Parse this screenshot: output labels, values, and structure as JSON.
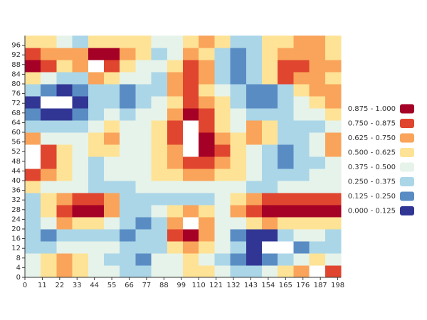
{
  "chart_data": {
    "type": "heatmap",
    "x": [
      0,
      10,
      20,
      30,
      40,
      50,
      60,
      70,
      80,
      90,
      100,
      110,
      120,
      130,
      140,
      150,
      160,
      170,
      180,
      190
    ],
    "y": [
      0,
      5,
      10,
      15,
      20,
      25,
      30,
      35,
      40,
      45,
      50,
      55,
      60,
      65,
      70,
      75,
      80,
      85,
      90,
      95
    ],
    "xlim": [
      0,
      200
    ],
    "ylim": [
      0,
      100
    ],
    "xticks": [
      0,
      11,
      22,
      33,
      44,
      55,
      66,
      77,
      88,
      99,
      110,
      121,
      132,
      143,
      154,
      165,
      176,
      187,
      198
    ],
    "yticks": [
      0,
      4,
      8,
      12,
      16,
      20,
      24,
      28,
      32,
      36,
      40,
      44,
      48,
      52,
      56,
      60,
      64,
      68,
      72,
      76,
      80,
      84,
      88,
      92,
      96
    ],
    "values": [
      [
        0.44,
        0.56,
        0.69,
        0.56,
        0.44,
        0.44,
        0.31,
        0.31,
        0.44,
        0.44,
        0.56,
        0.56,
        0.44,
        0.31,
        0.31,
        0.44,
        0.56,
        0.69,
        1.05,
        0.81
      ],
      [
        0.44,
        0.56,
        0.69,
        0.56,
        0.44,
        0.31,
        0.31,
        0.19,
        0.44,
        0.44,
        0.56,
        0.44,
        0.31,
        0.19,
        0.06,
        0.19,
        0.31,
        0.44,
        0.56,
        0.44
      ],
      [
        0.31,
        0.31,
        0.44,
        0.44,
        0.44,
        0.44,
        0.31,
        0.31,
        0.31,
        0.56,
        0.69,
        0.56,
        0.44,
        0.31,
        0.06,
        1.05,
        1.05,
        0.19,
        0.31,
        0.31
      ],
      [
        0.31,
        0.19,
        0.31,
        0.31,
        0.31,
        0.31,
        0.19,
        0.31,
        0.31,
        0.81,
        0.94,
        0.69,
        0.44,
        0.19,
        0.06,
        0.06,
        0.31,
        0.44,
        0.44,
        0.31
      ],
      [
        0.31,
        0.44,
        0.69,
        0.56,
        0.56,
        0.44,
        0.31,
        0.19,
        0.31,
        0.69,
        1.05,
        0.69,
        0.44,
        0.44,
        0.56,
        0.69,
        0.56,
        0.56,
        0.56,
        0.56
      ],
      [
        0.31,
        0.56,
        0.81,
        0.94,
        0.94,
        0.69,
        0.31,
        0.31,
        0.44,
        0.56,
        0.69,
        0.56,
        0.44,
        0.69,
        0.81,
        0.94,
        0.94,
        0.94,
        0.94,
        0.94
      ],
      [
        0.31,
        0.56,
        0.69,
        0.81,
        0.81,
        0.69,
        0.31,
        0.31,
        0.31,
        0.31,
        0.31,
        0.31,
        0.44,
        0.56,
        0.69,
        0.81,
        0.81,
        0.81,
        0.81,
        0.81
      ],
      [
        0.56,
        0.44,
        0.44,
        0.44,
        0.31,
        0.31,
        0.31,
        0.44,
        0.44,
        0.44,
        0.44,
        0.44,
        0.44,
        0.44,
        0.31,
        0.31,
        0.44,
        0.44,
        0.44,
        0.44
      ],
      [
        0.81,
        0.69,
        0.56,
        0.44,
        0.31,
        0.44,
        0.44,
        0.44,
        0.56,
        0.56,
        0.69,
        0.69,
        0.56,
        0.56,
        0.44,
        0.31,
        0.31,
        0.31,
        0.44,
        0.44
      ],
      [
        1.05,
        0.81,
        0.56,
        0.44,
        0.31,
        0.44,
        0.44,
        0.44,
        0.56,
        0.69,
        0.81,
        0.81,
        0.69,
        0.56,
        0.44,
        0.31,
        0.19,
        0.31,
        0.31,
        0.44
      ],
      [
        1.05,
        0.81,
        0.56,
        0.44,
        0.56,
        0.56,
        0.44,
        0.44,
        0.56,
        0.69,
        1.05,
        0.94,
        0.81,
        0.56,
        0.44,
        0.31,
        0.19,
        0.31,
        0.44,
        0.69
      ],
      [
        0.69,
        0.44,
        0.44,
        0.44,
        0.56,
        0.69,
        0.44,
        0.44,
        0.56,
        0.81,
        1.05,
        0.94,
        0.69,
        0.56,
        0.69,
        0.56,
        0.31,
        0.31,
        0.44,
        0.69
      ],
      [
        0.31,
        0.31,
        0.31,
        0.31,
        0.44,
        0.56,
        0.44,
        0.44,
        0.56,
        0.81,
        1.05,
        0.81,
        0.56,
        0.44,
        0.69,
        0.56,
        0.31,
        0.31,
        0.31,
        0.44
      ],
      [
        0.19,
        0.06,
        0.06,
        0.19,
        0.31,
        0.44,
        0.31,
        0.44,
        0.44,
        0.69,
        0.94,
        0.81,
        0.56,
        0.44,
        0.31,
        0.31,
        0.31,
        0.44,
        0.44,
        0.56
      ],
      [
        0.06,
        1.05,
        1.05,
        0.06,
        0.31,
        0.31,
        0.19,
        0.31,
        0.44,
        0.56,
        0.81,
        0.69,
        0.56,
        0.31,
        0.19,
        0.19,
        0.31,
        0.44,
        0.56,
        0.69
      ],
      [
        0.31,
        0.19,
        0.06,
        0.19,
        0.31,
        0.31,
        0.19,
        0.31,
        0.31,
        0.69,
        0.81,
        0.56,
        0.44,
        0.31,
        0.19,
        0.19,
        0.31,
        0.56,
        0.69,
        0.69
      ],
      [
        0.56,
        0.44,
        0.31,
        0.31,
        0.69,
        0.56,
        0.44,
        0.44,
        0.31,
        0.69,
        0.81,
        0.69,
        0.31,
        0.19,
        0.31,
        0.56,
        0.81,
        0.69,
        0.69,
        0.56
      ],
      [
        0.94,
        0.81,
        0.56,
        0.69,
        1.05,
        0.81,
        0.56,
        0.44,
        0.44,
        0.56,
        0.81,
        0.69,
        0.31,
        0.19,
        0.31,
        0.56,
        0.81,
        0.81,
        0.69,
        0.69
      ],
      [
        0.81,
        0.69,
        0.69,
        0.69,
        0.94,
        0.94,
        0.69,
        0.56,
        0.31,
        0.44,
        0.69,
        0.56,
        0.31,
        0.19,
        0.31,
        0.56,
        0.69,
        0.69,
        0.69,
        0.56
      ],
      [
        0.56,
        0.56,
        0.44,
        0.31,
        0.56,
        0.56,
        0.56,
        0.56,
        0.44,
        0.44,
        0.56,
        0.69,
        0.56,
        0.31,
        0.31,
        0.56,
        0.56,
        0.69,
        0.69,
        0.56
      ]
    ],
    "pieces": [
      {
        "value": [
          0.875,
          1
        ],
        "label": "0.875 - 1.000",
        "color": "#a50026"
      },
      {
        "value": [
          0.75,
          0.875
        ],
        "label": "0.750 - 0.875",
        "color": "#e0462f"
      },
      {
        "value": [
          0.625,
          0.75
        ],
        "label": "0.625 - 0.750",
        "color": "#f9a45a"
      },
      {
        "value": [
          0.5,
          0.625
        ],
        "label": "0.500 - 0.625",
        "color": "#fee396"
      },
      {
        "value": [
          0.375,
          0.5
        ],
        "label": "0.375 - 0.500",
        "color": "#e6f3ea"
      },
      {
        "value": [
          0.25,
          0.375
        ],
        "label": "0.250 - 0.375",
        "color": "#abd6e8"
      },
      {
        "value": [
          0.125,
          0.25
        ],
        "label": "0.125 - 0.250",
        "color": "#5a8cc4"
      },
      {
        "value": [
          0,
          0.125
        ],
        "label": "0.000 - 0.125",
        "color": "#313695"
      }
    ],
    "out_of_range_color": "#ffffff"
  }
}
